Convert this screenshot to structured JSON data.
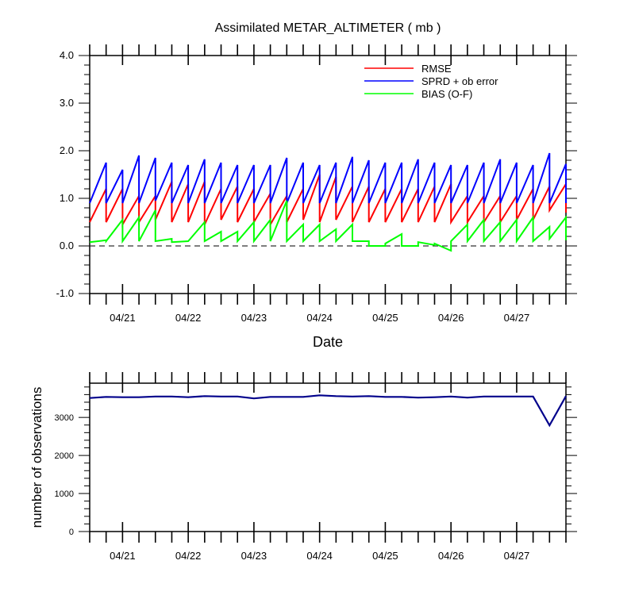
{
  "chart_data": [
    {
      "type": "line",
      "title": "Assimilated METAR_ALTIMETER ( mb )",
      "xlabel": "Date",
      "ylabel": "",
      "ylim": [
        -1.0,
        4.0
      ],
      "yticks": [
        -1.0,
        0.0,
        1.0,
        2.0,
        3.0,
        4.0
      ],
      "ytick_labels": [
        "-1.0",
        "0.0",
        "1.0",
        "2.0",
        "3.0",
        "4.0"
      ],
      "xlim": [
        20.5,
        27.75
      ],
      "xtick_labels": [
        "04/21",
        "04/22",
        "04/23",
        "04/24",
        "04/25",
        "04/26",
        "04/27"
      ],
      "xtick_values": [
        21,
        22,
        23,
        24,
        25,
        26,
        27
      ],
      "legend_position": "top-right",
      "zero_line": "dashed",
      "grid": false,
      "cycle_times": [
        20.5,
        20.75,
        21.0,
        21.25,
        21.5,
        21.75,
        22.0,
        22.25,
        22.5,
        22.75,
        23.0,
        23.25,
        23.5,
        23.75,
        24.0,
        24.25,
        24.5,
        24.75,
        25.0,
        25.25,
        25.5,
        25.75,
        26.0,
        26.25,
        26.5,
        26.75,
        27.0,
        27.25,
        27.5,
        27.75
      ],
      "series": [
        {
          "name": "RMSE",
          "color": "#ff0000",
          "kind": "sawtooth",
          "prior": [
            1.2,
            1.2,
            1.05,
            1.05,
            1.35,
            1.3,
            1.35,
            1.2,
            1.25,
            1.2,
            1.1,
            1.05,
            1.2,
            1.5,
            1.45,
            1.25,
            1.25,
            1.2,
            1.2,
            1.2,
            1.25,
            1.3,
            1.05,
            1.05,
            1.05,
            1.05,
            1.2,
            1.25,
            1.3,
            1.25
          ],
          "posterior": [
            0.5,
            0.5,
            0.45,
            0.5,
            0.55,
            0.5,
            0.5,
            0.45,
            0.55,
            0.5,
            0.5,
            0.45,
            0.5,
            0.55,
            0.5,
            0.55,
            0.5,
            0.5,
            0.5,
            0.5,
            0.5,
            0.5,
            0.5,
            0.5,
            0.5,
            0.5,
            0.55,
            0.55,
            0.75,
            0.7
          ]
        },
        {
          "name": "SPRD + ob error",
          "color": "#0000ff",
          "kind": "sawtooth",
          "prior": [
            1.75,
            1.6,
            1.9,
            1.85,
            1.75,
            1.7,
            1.82,
            1.75,
            1.7,
            1.7,
            1.7,
            1.85,
            1.75,
            1.7,
            1.75,
            1.87,
            1.8,
            1.75,
            1.75,
            1.82,
            1.75,
            1.7,
            1.7,
            1.75,
            1.82,
            1.75,
            1.7,
            1.95,
            1.72,
            1.7
          ],
          "posterior": [
            0.9,
            0.9,
            0.9,
            0.9,
            0.95,
            0.9,
            0.9,
            0.9,
            0.9,
            0.9,
            0.9,
            0.9,
            0.9,
            0.9,
            0.9,
            0.9,
            0.9,
            0.9,
            0.9,
            0.9,
            0.9,
            0.9,
            0.9,
            0.9,
            0.9,
            0.9,
            0.9,
            0.9,
            0.9,
            0.9
          ]
        },
        {
          "name": "BIAS (O-F)",
          "color": "#00ff00",
          "kind": "sawtooth",
          "prior": [
            0.12,
            0.55,
            0.6,
            0.75,
            0.15,
            0.1,
            0.5,
            0.3,
            0.3,
            0.5,
            0.55,
            0.95,
            0.45,
            0.45,
            0.35,
            0.45,
            0.1,
            0.0,
            0.25,
            0.0,
            0.02,
            -0.1,
            0.45,
            0.55,
            0.5,
            0.55,
            0.6,
            0.4,
            0.6,
            0.6
          ],
          "posterior": [
            0.08,
            0.1,
            0.1,
            0.1,
            0.1,
            0.08,
            0.1,
            0.1,
            0.1,
            0.1,
            0.1,
            0.1,
            0.1,
            0.1,
            0.1,
            0.1,
            0.1,
            0.0,
            0.05,
            0.0,
            0.08,
            0.05,
            0.1,
            0.1,
            0.1,
            0.1,
            0.1,
            0.1,
            0.15,
            0.12
          ]
        }
      ]
    },
    {
      "type": "line",
      "title": "",
      "xlabel": "",
      "ylabel": "number of observations",
      "ylim": [
        0,
        3900
      ],
      "yticks": [
        0,
        1000,
        2000,
        3000
      ],
      "ytick_labels": [
        "0",
        "1000",
        "2000",
        "3000"
      ],
      "xlim": [
        20.5,
        27.75
      ],
      "xtick_labels": [
        "04/21",
        "04/22",
        "04/23",
        "04/24",
        "04/25",
        "04/26",
        "04/27"
      ],
      "xtick_values": [
        21,
        22,
        23,
        24,
        25,
        26,
        27
      ],
      "grid": false,
      "series": [
        {
          "name": "",
          "color": "#00008b",
          "x": [
            20.5,
            20.75,
            21.0,
            21.25,
            21.5,
            21.75,
            22.0,
            22.25,
            22.5,
            22.75,
            23.0,
            23.25,
            23.5,
            23.75,
            24.0,
            24.25,
            24.5,
            24.75,
            25.0,
            25.25,
            25.5,
            25.75,
            26.0,
            26.25,
            26.5,
            26.75,
            27.0,
            27.25,
            27.5,
            27.75
          ],
          "y": [
            3510,
            3540,
            3530,
            3530,
            3550,
            3550,
            3530,
            3560,
            3550,
            3550,
            3500,
            3540,
            3540,
            3540,
            3580,
            3560,
            3550,
            3560,
            3540,
            3540,
            3520,
            3530,
            3550,
            3520,
            3550,
            3550,
            3550,
            3550,
            2790,
            3560
          ]
        }
      ]
    }
  ]
}
